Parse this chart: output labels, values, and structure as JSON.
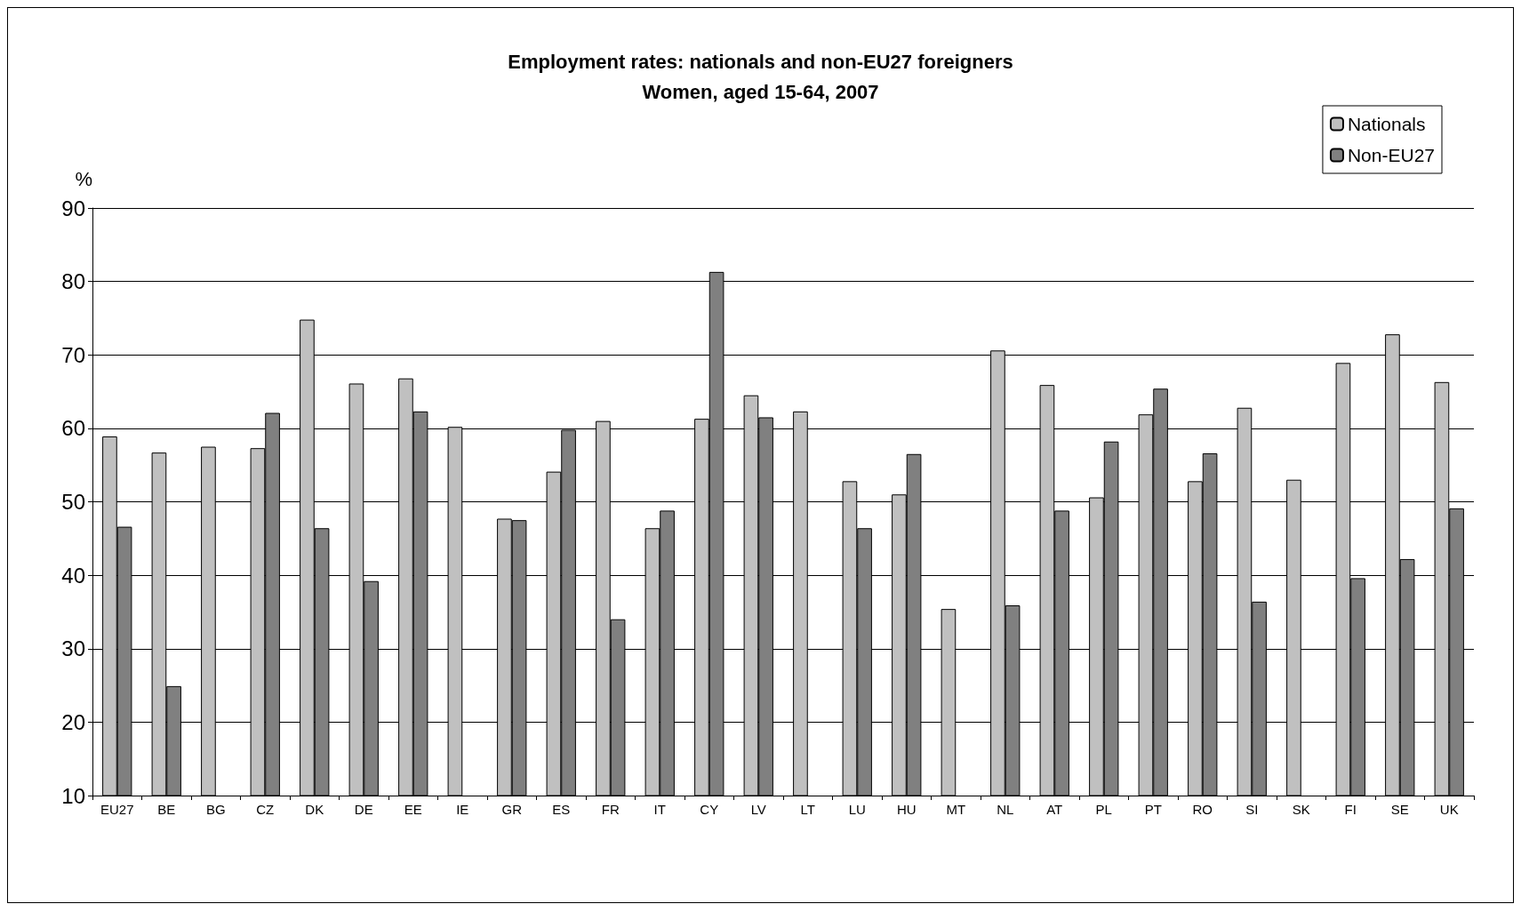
{
  "chart_data": {
    "type": "bar",
    "title": "Employment rates: nationals and non-EU27 foreigners\nWomen, aged 15-64, 2007",
    "ylabel": "%",
    "categories": [
      "EU27",
      "BE",
      "BG",
      "CZ",
      "DK",
      "DE",
      "EE",
      "IE",
      "GR",
      "ES",
      "FR",
      "IT",
      "CY",
      "LV",
      "LT",
      "LU",
      "HU",
      "MT",
      "NL",
      "AT",
      "PL",
      "PT",
      "RO",
      "SI",
      "SK",
      "FI",
      "SE",
      "UK"
    ],
    "series": [
      {
        "name": "Nationals",
        "color": "#c0c0c0",
        "values": [
          58.9,
          56.7,
          57.5,
          57.3,
          74.8,
          66.1,
          66.8,
          60.2,
          47.7,
          54.1,
          61.0,
          46.4,
          61.3,
          64.5,
          62.3,
          52.8,
          51.0,
          35.4,
          70.6,
          65.9,
          50.6,
          61.9,
          52.8,
          62.8,
          53.0,
          68.9,
          72.8,
          66.3
        ]
      },
      {
        "name": "Non-EU27",
        "color": "#808080",
        "values": [
          46.6,
          24.9,
          null,
          62.1,
          46.4,
          39.2,
          62.3,
          null,
          47.5,
          59.8,
          34.0,
          48.8,
          81.3,
          61.5,
          null,
          46.4,
          56.5,
          null,
          35.9,
          48.8,
          58.2,
          65.4,
          56.6,
          36.4,
          null,
          39.6,
          42.2,
          49.1
        ]
      }
    ],
    "ylim": [
      10,
      90
    ],
    "yticks": [
      10,
      20,
      30,
      40,
      50,
      60,
      70,
      80,
      90
    ],
    "grid": "y",
    "legend": "top right"
  }
}
